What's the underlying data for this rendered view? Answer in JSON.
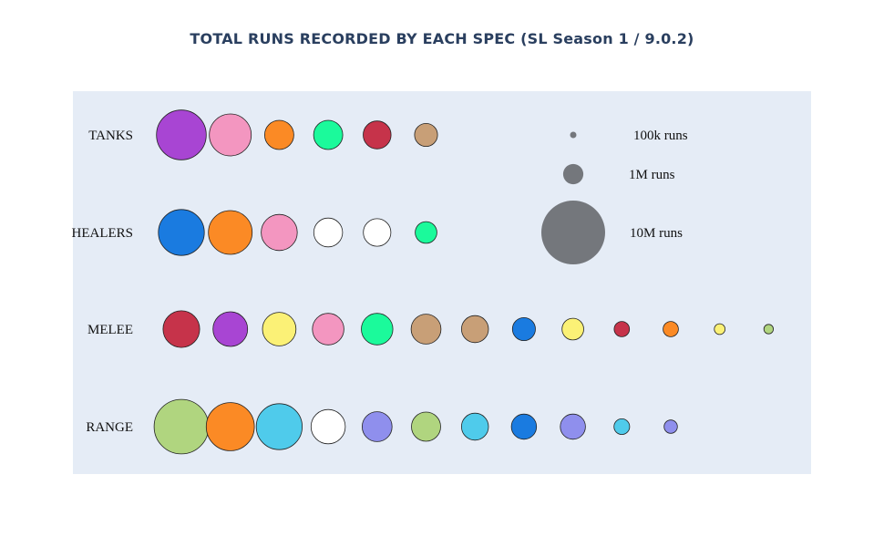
{
  "title": "TOTAL RUNS RECORDED BY EACH SPEC (SL Season 1 / 9.0.2)",
  "colors": {
    "plot_bg": "#e5ecf6",
    "legend_bubble": "#74777c",
    "stroke": "#222222"
  },
  "legend": {
    "entries": [
      {
        "label": "100k runs",
        "runs": 100000
      },
      {
        "label": "1M runs",
        "runs": 1000000
      },
      {
        "label": "10M runs",
        "runs": 10000000
      }
    ]
  },
  "chart_data": {
    "type": "scatter",
    "title": "TOTAL RUNS RECORDED BY EACH SPEC (SL Season 1 / 9.0.2)",
    "size_encoding": "bubble area proportional to runs recorded",
    "grid": false,
    "rows": [
      {
        "label": "TANKS",
        "bubbles": [
          {
            "color": "#a845d3",
            "runs": 6100000
          },
          {
            "color": "#f396c0",
            "runs": 4300000
          },
          {
            "color": "#fb8a25",
            "runs": 2100000
          },
          {
            "color": "#1bfa9b",
            "runs": 2100000
          },
          {
            "color": "#c6334a",
            "runs": 1900000
          },
          {
            "color": "#c89f77",
            "runs": 1300000
          }
        ]
      },
      {
        "label": "HEALERS",
        "bubbles": [
          {
            "color": "#1a7be0",
            "runs": 5200000
          },
          {
            "color": "#fb8a25",
            "runs": 4700000
          },
          {
            "color": "#f396c0",
            "runs": 3200000
          },
          {
            "color": "#ffffff",
            "runs": 2050000
          },
          {
            "color": "#ffffff",
            "runs": 1850000
          },
          {
            "color": "#1bfa9b",
            "runs": 1150000
          }
        ]
      },
      {
        "label": "MELEE",
        "bubbles": [
          {
            "color": "#c6334a",
            "runs": 3300000
          },
          {
            "color": "#a845d3",
            "runs": 2950000
          },
          {
            "color": "#fbf176",
            "runs": 2750000
          },
          {
            "color": "#f396c0",
            "runs": 2450000
          },
          {
            "color": "#1bfa9b",
            "runs": 2450000
          },
          {
            "color": "#c89f77",
            "runs": 2200000
          },
          {
            "color": "#c89f77",
            "runs": 1800000
          },
          {
            "color": "#1a7be0",
            "runs": 1300000
          },
          {
            "color": "#fbf176",
            "runs": 1150000
          },
          {
            "color": "#c6334a",
            "runs": 570000
          },
          {
            "color": "#fb8a25",
            "runs": 570000
          },
          {
            "color": "#fbf176",
            "runs": 280000
          },
          {
            "color": "#b0d57f",
            "runs": 220000
          }
        ]
      },
      {
        "label": "RANGE",
        "bubbles": [
          {
            "color": "#b0d57f",
            "runs": 7300000
          },
          {
            "color": "#fb8a25",
            "runs": 5700000
          },
          {
            "color": "#4fcbeb",
            "runs": 5200000
          },
          {
            "color": "#ffffff",
            "runs": 2900000
          },
          {
            "color": "#8f8fed",
            "runs": 2200000
          },
          {
            "color": "#b0d57f",
            "runs": 2100000
          },
          {
            "color": "#4fcbeb",
            "runs": 1800000
          },
          {
            "color": "#1a7be0",
            "runs": 1550000
          },
          {
            "color": "#8f8fed",
            "runs": 1550000
          },
          {
            "color": "#4fcbeb",
            "runs": 600000
          },
          {
            "color": "#8f8fed",
            "runs": 440000
          }
        ]
      }
    ]
  }
}
